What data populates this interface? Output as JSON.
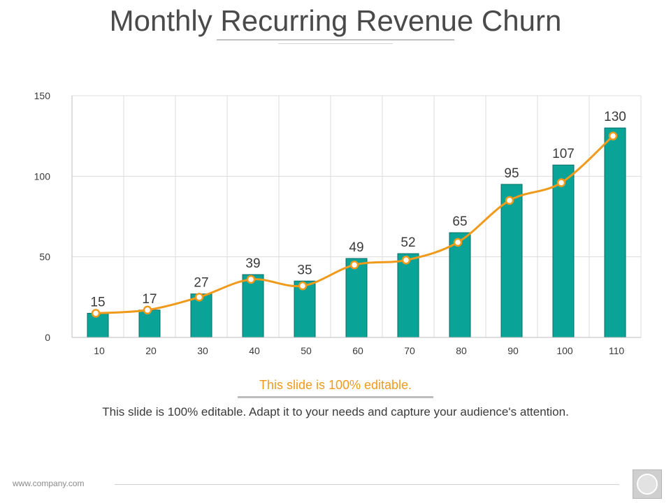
{
  "slide": {
    "title": "Monthly Recurring Revenue Churn",
    "subheading": "This slide is 100% editable.",
    "body_text": "This slide is 100% editable. Adapt it to your needs and capture your audience's attention.",
    "footer_url": "www.company.com"
  },
  "colors": {
    "bar": "#0aa398",
    "bar_outline": "#0a6e66",
    "line": "#ef9a1b",
    "grid": "#dcdcdc",
    "text": "#3a3a3a"
  },
  "chart_data": {
    "type": "bar",
    "categories": [
      "10",
      "20",
      "30",
      "40",
      "50",
      "60",
      "70",
      "80",
      "90",
      "100",
      "110"
    ],
    "series": [
      {
        "values": [
          15,
          17,
          27,
          39,
          35,
          49,
          52,
          65,
          95,
          107,
          130
        ]
      }
    ],
    "trend_line": {
      "values": [
        15,
        17,
        25,
        36,
        32,
        45,
        48,
        59,
        85,
        96,
        125
      ]
    },
    "data_labels": [
      "15",
      "17",
      "27",
      "39",
      "35",
      "49",
      "52",
      "65",
      "95",
      "107",
      "130"
    ],
    "y_ticks": [
      0,
      50,
      100,
      150
    ],
    "ylim": [
      0,
      150
    ],
    "title": "",
    "xlabel": "",
    "ylabel": "",
    "grid": true,
    "legend": "none"
  }
}
